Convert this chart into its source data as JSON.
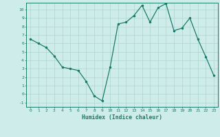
{
  "x": [
    0,
    1,
    2,
    3,
    4,
    5,
    6,
    7,
    8,
    9,
    10,
    11,
    12,
    13,
    14,
    15,
    16,
    17,
    18,
    19,
    20,
    21,
    22,
    23
  ],
  "y": [
    6.5,
    6.0,
    5.5,
    4.5,
    3.2,
    3.0,
    2.8,
    1.5,
    -0.2,
    -0.8,
    3.2,
    8.3,
    8.5,
    9.3,
    10.5,
    8.5,
    10.2,
    10.7,
    7.5,
    7.8,
    9.0,
    6.5,
    4.4,
    2.2
  ],
  "xlabel": "Humidex (Indice chaleur)",
  "xlim": [
    -0.5,
    23.5
  ],
  "ylim": [
    -1.5,
    10.8
  ],
  "yticks": [
    -1,
    0,
    1,
    2,
    3,
    4,
    5,
    6,
    7,
    8,
    9,
    10
  ],
  "xticks": [
    0,
    1,
    2,
    3,
    4,
    5,
    6,
    7,
    8,
    9,
    10,
    11,
    12,
    13,
    14,
    15,
    16,
    17,
    18,
    19,
    20,
    21,
    22,
    23
  ],
  "line_color": "#1a7a6a",
  "marker_color": "#1a7a6a",
  "bg_color": "#ceecea",
  "grid_color": "#aed4d0",
  "label_color": "#1a7a6a",
  "tick_color": "#1a7a6a",
  "spine_color": "#1a7a6a"
}
